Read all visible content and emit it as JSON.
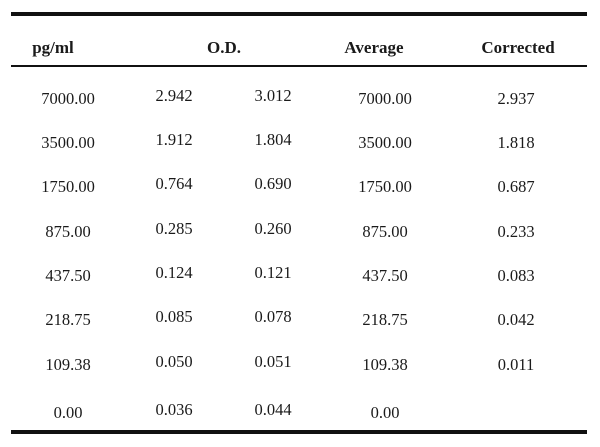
{
  "table": {
    "headers": {
      "concentration": "pg/ml",
      "od": "O.D.",
      "average": "Average",
      "corrected": "Corrected"
    },
    "rows": [
      {
        "conc": "7000.00",
        "od1": "2.942",
        "od2": "3.012",
        "avg": "7000.00",
        "corr": "2.937"
      },
      {
        "conc": "3500.00",
        "od1": "1.912",
        "od2": "1.804",
        "avg": "3500.00",
        "corr": "1.818"
      },
      {
        "conc": "1750.00",
        "od1": "0.764",
        "od2": "0.690",
        "avg": "1750.00",
        "corr": "0.687"
      },
      {
        "conc": "875.00",
        "od1": "0.285",
        "od2": "0.260",
        "avg": "875.00",
        "corr": "0.233"
      },
      {
        "conc": "437.50",
        "od1": "0.124",
        "od2": "0.121",
        "avg": "437.50",
        "corr": "0.083"
      },
      {
        "conc": "218.75",
        "od1": "0.085",
        "od2": "0.078",
        "avg": "218.75",
        "corr": "0.042"
      },
      {
        "conc": "109.38",
        "od1": "0.050",
        "od2": "0.051",
        "avg": "109.38",
        "corr": "0.011"
      },
      {
        "conc": "0.00",
        "od1": "0.036",
        "od2": "0.044",
        "avg": "0.00",
        "corr": ""
      }
    ]
  }
}
